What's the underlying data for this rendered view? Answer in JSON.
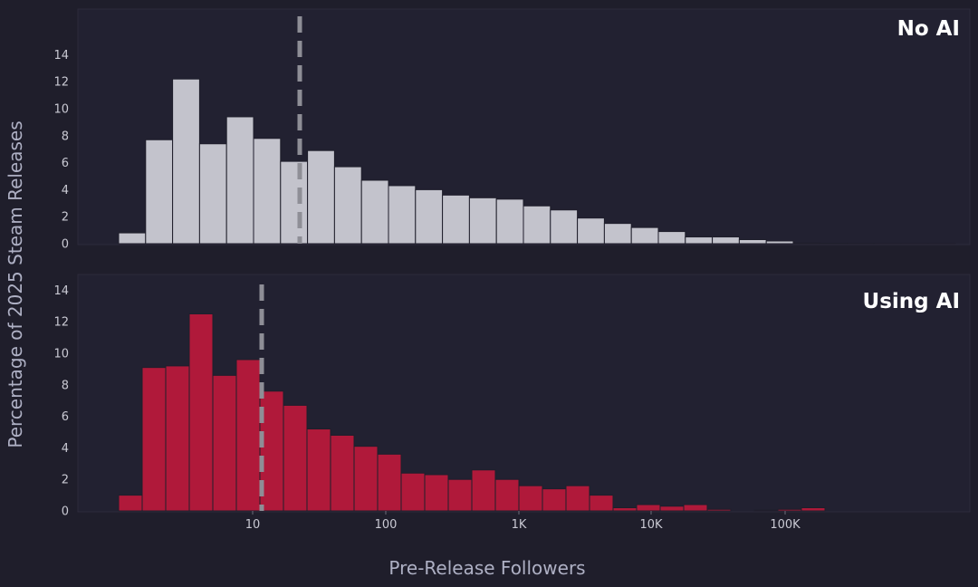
{
  "chart_data": [
    {
      "type": "bar",
      "title": "No AI",
      "ylabel": "Percentage of 2025 Steam Releases",
      "xlabel": "Pre-Release Followers",
      "x_scale": "log",
      "ylim": [
        0,
        14.5
      ],
      "yticks": [
        "0",
        "2",
        "4",
        "6",
        "8",
        "10",
        "12",
        "14"
      ],
      "bar_color": "#c3c3cc",
      "values": [
        0.8,
        7.7,
        12.2,
        7.4,
        9.4,
        7.8,
        6.1,
        6.9,
        5.7,
        4.7,
        4.3,
        4.0,
        3.6,
        3.4,
        3.3,
        2.8,
        2.5,
        1.9,
        1.5,
        1.2,
        0.9,
        0.5,
        0.5,
        0.3,
        0.2,
        0.05,
        0.03,
        0.02,
        0.01,
        0.01,
        0.01,
        0.0
      ],
      "median_line": 23
    },
    {
      "type": "bar",
      "title": "Using AI",
      "ylabel": "Percentage of 2025 Steam Releases",
      "xlabel": "Pre-Release Followers",
      "x_scale": "log",
      "ylim": [
        0,
        14.5
      ],
      "yticks": [
        "0",
        "2",
        "4",
        "6",
        "8",
        "10",
        "12",
        "14"
      ],
      "xticks": [
        "10",
        "100",
        "1K",
        "10K",
        "100K"
      ],
      "bar_color": "#b0193a",
      "values": [
        1.0,
        9.1,
        9.2,
        12.5,
        8.6,
        9.6,
        7.6,
        6.7,
        5.2,
        4.8,
        4.1,
        3.6,
        2.4,
        2.3,
        2.0,
        2.6,
        2.0,
        1.6,
        1.4,
        1.6,
        1.0,
        0.2,
        0.4,
        0.3,
        0.4,
        0.1,
        0.0,
        0.05,
        0.1,
        0.2,
        0.0
      ],
      "median_line": 12
    }
  ]
}
